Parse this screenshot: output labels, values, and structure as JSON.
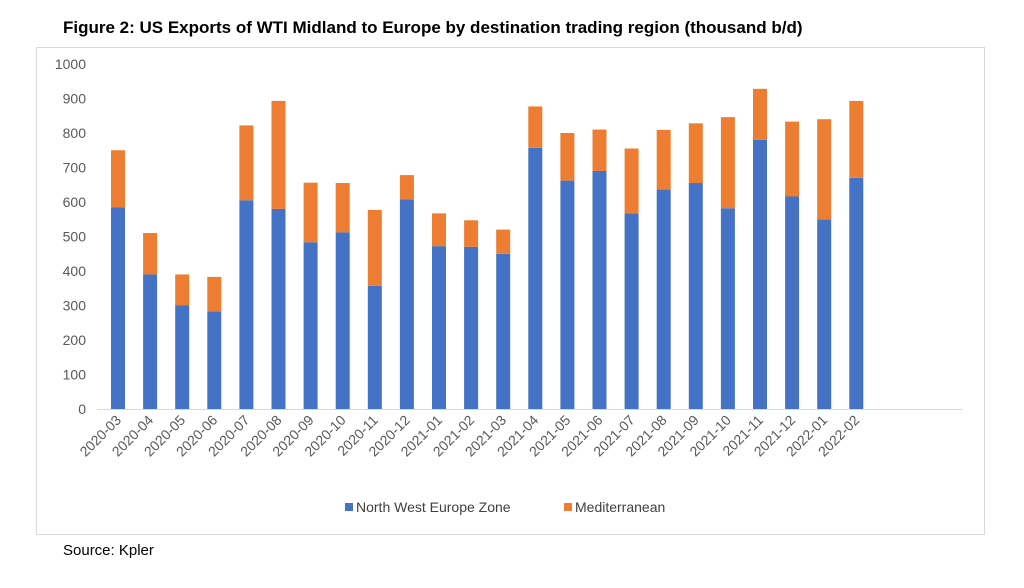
{
  "title": "Figure 2: US Exports of WTI Midland to Europe by destination trading region (thousand b/d)",
  "source": "Source: Kpler",
  "chart_data": {
    "type": "bar",
    "stacked": true,
    "title": "Figure 2: US Exports of WTI Midland to Europe by destination trading region (thousand b/d)",
    "xlabel": "",
    "ylabel": "",
    "ylim": [
      0,
      1000
    ],
    "yticks": [
      0,
      100,
      200,
      300,
      400,
      500,
      600,
      700,
      800,
      900,
      1000
    ],
    "grid": false,
    "legend_position": "bottom",
    "categories": [
      "2020-03",
      "2020-04",
      "2020-05",
      "2020-06",
      "2020-07",
      "2020-08",
      "2020-09",
      "2020-10",
      "2020-11",
      "2020-12",
      "2021-01",
      "2021-02",
      "2021-03",
      "2021-04",
      "2021-05",
      "2021-06",
      "2021-07",
      "2021-08",
      "2021-09",
      "2021-10",
      "2021-11",
      "2021-12",
      "2022-01",
      "2022-02"
    ],
    "series": [
      {
        "name": "North West Europe Zone",
        "color": "#4472c4",
        "values": [
          585,
          390,
          300,
          283,
          605,
          580,
          483,
          512,
          357,
          608,
          472,
          470,
          450,
          757,
          662,
          690,
          567,
          636,
          655,
          582,
          780,
          616,
          550,
          670
        ]
      },
      {
        "name": "Mediterranean",
        "color": "#ed7d31",
        "values": [
          165,
          120,
          90,
          100,
          217,
          313,
          173,
          143,
          220,
          70,
          95,
          77,
          70,
          120,
          138,
          120,
          188,
          173,
          173,
          264,
          148,
          217,
          290,
          223
        ]
      }
    ]
  }
}
